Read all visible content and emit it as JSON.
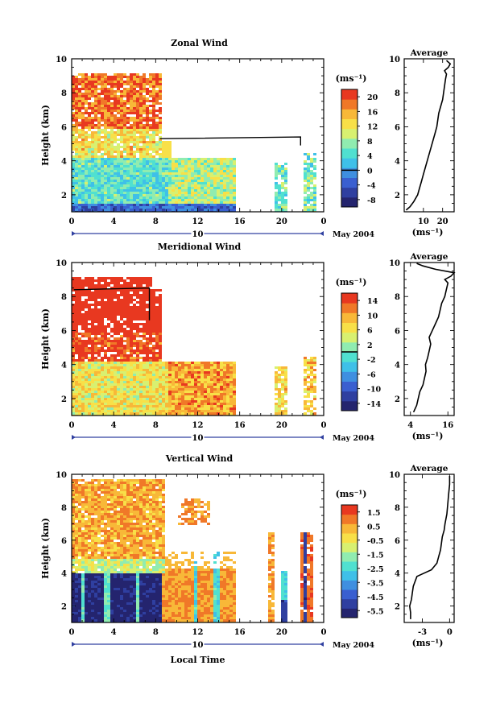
{
  "colors": {
    "jet": [
      "#24246e",
      "#2f3fa0",
      "#3a5fd0",
      "#3f8fe0",
      "#3fc0e8",
      "#50e0d0",
      "#90ecb0",
      "#d8f070",
      "#f8e048",
      "#f8b838",
      "#f07828",
      "#e83820"
    ]
  },
  "chart_data": [
    {
      "type": "heatmap",
      "title": "Zonal Wind",
      "ylabel": "Height (km)",
      "xlim": [
        0,
        24
      ],
      "ylim": [
        1,
        10
      ],
      "xticks": [
        "0",
        "4",
        "8",
        "12",
        "16",
        "20",
        "0"
      ],
      "xtick_values": [
        0,
        4,
        8,
        12,
        16,
        20,
        24
      ],
      "yticks": [
        "2",
        "4",
        "6",
        "8",
        "10"
      ],
      "ytick_values": [
        2,
        4,
        6,
        8,
        10
      ],
      "date_tick": "10",
      "date_label": "May 2004",
      "colorbar": {
        "unit": "(ms⁻¹)",
        "ticks": [
          "20",
          "16",
          "12",
          "8",
          "4",
          "0",
          "-4",
          "-8"
        ],
        "tick_values": [
          20,
          16,
          12,
          8,
          4,
          0,
          -4,
          -8
        ],
        "range": [
          -10,
          22
        ],
        "contour_value": 0
      },
      "field": {
        "low_layer_value": 5,
        "upper_layer_value": 12,
        "core_value": 20,
        "lowest_value": -6
      },
      "profile": {
        "title": "Average",
        "xlabel": "(ms⁻¹)",
        "xticks": [
          "10",
          "20"
        ],
        "xtick_values": [
          10,
          20
        ],
        "xlim": [
          0,
          26
        ],
        "x": [
          1,
          3,
          5,
          7,
          8,
          9,
          10,
          11,
          12,
          13,
          14,
          15,
          16,
          17,
          17.5,
          18,
          19,
          20,
          20.5,
          21,
          21.5,
          22,
          21,
          23,
          24,
          22
        ],
        "y": [
          1.1,
          1.3,
          1.6,
          2.0,
          2.4,
          2.8,
          3.2,
          3.6,
          4.0,
          4.4,
          4.8,
          5.2,
          5.6,
          6.0,
          6.4,
          6.8,
          7.2,
          7.6,
          8.0,
          8.4,
          8.8,
          9.1,
          9.3,
          9.5,
          9.7,
          9.9
        ]
      }
    },
    {
      "type": "heatmap",
      "title": "Meridional Wind",
      "ylabel": "Height (km)",
      "xlim": [
        0,
        24
      ],
      "ylim": [
        1,
        10
      ],
      "xticks": [
        "0",
        "4",
        "8",
        "12",
        "16",
        "20",
        "0"
      ],
      "xtick_values": [
        0,
        4,
        8,
        12,
        16,
        20,
        24
      ],
      "yticks": [
        "2",
        "4",
        "6",
        "8",
        "10"
      ],
      "ytick_values": [
        2,
        4,
        6,
        8,
        10
      ],
      "date_tick": "10",
      "date_label": "May 2004",
      "colorbar": {
        "unit": "(ms⁻¹)",
        "ticks": [
          "14",
          "10",
          "6",
          "2",
          "-2",
          "-6",
          "-10",
          "-14"
        ],
        "tick_values": [
          14,
          10,
          6,
          2,
          -2,
          -6,
          -10,
          -14
        ],
        "range": [
          -16,
          16
        ],
        "contour_value": 0
      },
      "field": {
        "low_layer_value": 6,
        "upper_layer_value": 14,
        "core_value": 16,
        "lowest_value": -4
      },
      "profile": {
        "title": "Average",
        "xlabel": "(ms⁻¹)",
        "xticks": [
          "4",
          "16"
        ],
        "xtick_values": [
          4,
          16
        ],
        "xlim": [
          2,
          18
        ],
        "x": [
          5,
          6,
          6.5,
          7,
          8,
          8.5,
          9,
          8.8,
          9.5,
          10,
          10.5,
          10,
          11,
          12,
          13,
          13.5,
          14,
          15,
          15.5,
          16,
          15,
          17,
          18,
          12,
          8,
          6
        ],
        "y": [
          1.2,
          1.6,
          2.0,
          2.4,
          2.8,
          3.2,
          3.6,
          4.0,
          4.4,
          4.8,
          5.2,
          5.6,
          6.0,
          6.4,
          6.8,
          7.2,
          7.6,
          8.0,
          8.4,
          8.8,
          9.0,
          9.2,
          9.4,
          9.6,
          9.8,
          9.95
        ]
      }
    },
    {
      "type": "heatmap",
      "title": "Vertical Wind",
      "xlabel": "Local Time",
      "ylabel": "Height (km)",
      "xlim": [
        0,
        24
      ],
      "ylim": [
        1,
        10
      ],
      "xticks": [
        "0",
        "4",
        "8",
        "12",
        "16",
        "20",
        "0"
      ],
      "xtick_values": [
        0,
        4,
        8,
        12,
        16,
        20,
        24
      ],
      "yticks": [
        "2",
        "4",
        "6",
        "8",
        "10"
      ],
      "ytick_values": [
        2,
        4,
        6,
        8,
        10
      ],
      "date_tick": "10",
      "date_label": "May 2004",
      "colorbar": {
        "unit": "(ms⁻¹)",
        "ticks": [
          "1.5",
          "0.5",
          "-0.5",
          "-1.5",
          "-2.5",
          "-3.5",
          "-4.5",
          "-5.5"
        ],
        "tick_values": [
          1.5,
          0.5,
          -0.5,
          -1.5,
          -2.5,
          -3.5,
          -4.5,
          -5.5
        ],
        "range": [
          -6,
          2
        ]
      },
      "field": {
        "low_layer_value": -5.8,
        "upper_layer_value": 0.4,
        "afternoon_value": 1.2,
        "lowest_value": -5.8
      },
      "profile": {
        "title": "Average",
        "xlabel": "(ms⁻¹)",
        "xticks": [
          "-3",
          "0"
        ],
        "xtick_values": [
          -3,
          0
        ],
        "xlim": [
          -5,
          0.5
        ],
        "x": [
          -4.3,
          -4.3,
          -4.4,
          -4.2,
          -4.1,
          -4.0,
          -3.6,
          -2.0,
          -1.4,
          -1.2,
          -1.0,
          -0.9,
          -0.8,
          -0.6,
          -0.5,
          -0.3,
          -0.2,
          -0.1,
          0,
          0
        ],
        "y": [
          1.2,
          1.6,
          2.0,
          2.4,
          2.8,
          3.2,
          3.8,
          4.2,
          4.6,
          5.0,
          5.4,
          5.8,
          6.2,
          6.6,
          7.0,
          7.6,
          8.2,
          8.8,
          9.4,
          9.9
        ]
      }
    }
  ]
}
